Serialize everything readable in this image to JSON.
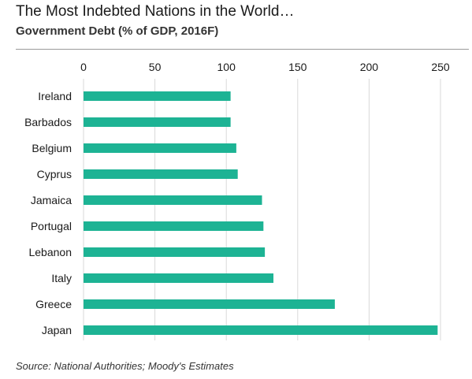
{
  "header": {
    "title": "The Most Indebted Nations in the World…",
    "subtitle": "Government Debt (% of GDP, 2016F)"
  },
  "footer": {
    "source": "Source: National Authorities; Moody's Estimates"
  },
  "colors": {
    "bar": "#1db394",
    "grid": "#d9d9d9",
    "text": "#1a1a1a"
  },
  "chart_data": {
    "type": "bar",
    "orientation": "horizontal",
    "title": "The Most Indebted Nations in the World…",
    "subtitle": "Government Debt (% of GDP, 2016F)",
    "categories": [
      "Ireland",
      "Barbados",
      "Belgium",
      "Cyprus",
      "Jamaica",
      "Portugal",
      "Lebanon",
      "Italy",
      "Greece",
      "Japan"
    ],
    "values": [
      103,
      103,
      107,
      108,
      125,
      126,
      127,
      133,
      176,
      248
    ],
    "xlim": [
      0,
      250
    ],
    "xticks": [
      "0",
      "50",
      "100",
      "150",
      "200",
      "250"
    ],
    "xaxis_position": "top",
    "grid": true,
    "legend": "none"
  }
}
